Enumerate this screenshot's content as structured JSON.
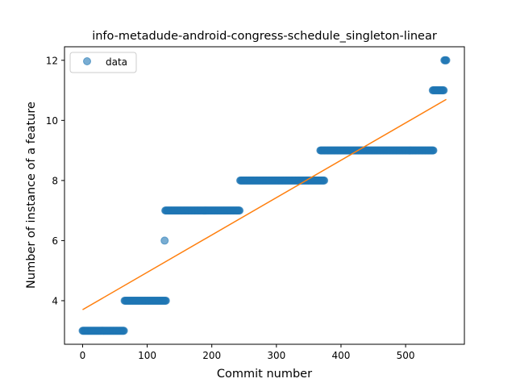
{
  "chart_data": {
    "type": "scatter",
    "title": "info-metadude-android-congress-schedule_singleton-linear",
    "xlabel": "Commit number",
    "ylabel": "Number of instance of a feature",
    "xlim": [
      -28,
      591
    ],
    "ylim": [
      2.55,
      12.45
    ],
    "xticks": [
      0,
      100,
      200,
      300,
      400,
      500
    ],
    "yticks": [
      4,
      6,
      8,
      10,
      12
    ],
    "legend": {
      "position": "top-left",
      "entries": [
        "data"
      ]
    },
    "grid": false,
    "colors": {
      "points": "#1f77b4",
      "fit": "#ff7f0e"
    },
    "series": [
      {
        "name": "data",
        "kind": "points",
        "segments": [
          {
            "x_start": 0,
            "x_end": 64,
            "y": 3
          },
          {
            "x_start": 65,
            "x_end": 129,
            "y": 4
          },
          {
            "x_start": 127,
            "x_end": 127,
            "y": 6
          },
          {
            "x_start": 128,
            "x_end": 243,
            "y": 7
          },
          {
            "x_start": 244,
            "x_end": 374,
            "y": 8
          },
          {
            "x_start": 368,
            "x_end": 543,
            "y": 9
          },
          {
            "x_start": 542,
            "x_end": 559,
            "y": 11
          },
          {
            "x_start": 560,
            "x_end": 563,
            "y": 12
          }
        ]
      },
      {
        "kind": "fit-line",
        "x": [
          0,
          563
        ],
        "y": [
          3.7,
          10.7
        ]
      }
    ]
  }
}
